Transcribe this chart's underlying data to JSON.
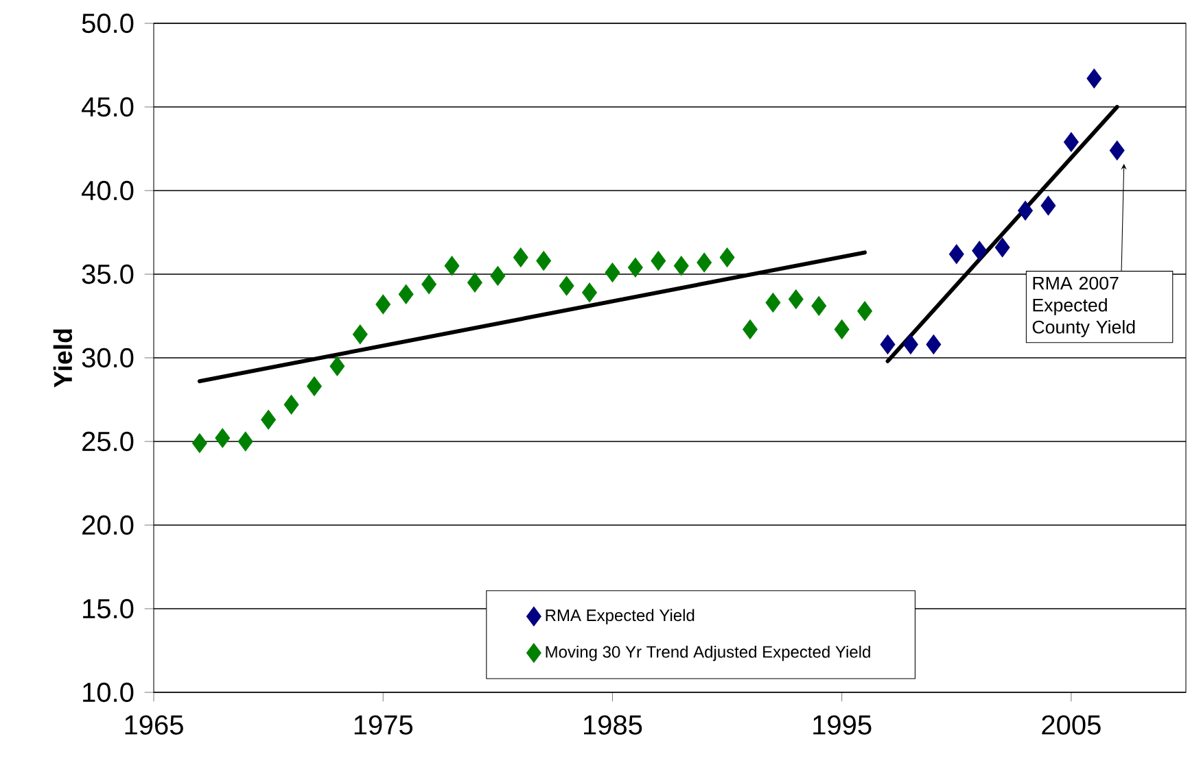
{
  "chart_data": {
    "type": "scatter",
    "ylabel": "Yield",
    "xlim": [
      1965,
      2010
    ],
    "xticks": [
      1965,
      1975,
      1985,
      1995,
      2005
    ],
    "ylim": [
      10,
      50
    ],
    "yticks": [
      {
        "value": 10,
        "label": "10.0"
      },
      {
        "value": 15,
        "label": "15.0"
      },
      {
        "value": 20,
        "label": "20.0"
      },
      {
        "value": 25,
        "label": "25.0"
      },
      {
        "value": 30,
        "label": "30.0"
      },
      {
        "value": 35,
        "label": "35.0"
      },
      {
        "value": 40,
        "label": "40.0"
      },
      {
        "value": 45,
        "label": "45.0"
      },
      {
        "value": 50,
        "label": "50.0"
      }
    ],
    "grid": "y",
    "legend": "bottom",
    "marker": "diamond",
    "series": [
      {
        "name": "RMA Expected Yield",
        "color": "#000080",
        "x": [
          1997,
          1998,
          1999,
          2000,
          2001,
          2002,
          2003,
          2004,
          2005,
          2006,
          2007
        ],
        "values": [
          30.8,
          30.8,
          30.8,
          36.2,
          36.4,
          36.6,
          38.8,
          39.1,
          42.9,
          46.7,
          42.4
        ]
      },
      {
        "name": "Moving 30 Yr Trend Adjusted Expected Yield",
        "color": "#008000",
        "x": [
          1967,
          1968,
          1969,
          1970,
          1971,
          1972,
          1973,
          1974,
          1975,
          1976,
          1977,
          1978,
          1979,
          1980,
          1981,
          1982,
          1983,
          1984,
          1985,
          1986,
          1987,
          1988,
          1989,
          1990,
          1991,
          1992,
          1993,
          1994,
          1995,
          1996
        ],
        "values": [
          24.9,
          25.2,
          25.0,
          26.3,
          27.2,
          28.3,
          29.5,
          31.4,
          33.2,
          33.8,
          34.4,
          35.5,
          34.5,
          34.9,
          36.0,
          35.8,
          34.3,
          33.9,
          35.1,
          35.4,
          35.8,
          35.5,
          35.7,
          36.0,
          31.7,
          33.3,
          33.5,
          33.1,
          31.7,
          32.8
        ]
      },
      {
        "type": "line",
        "marker": "none",
        "color": "#000000",
        "x": [
          1967,
          1996
        ],
        "values": [
          28.6,
          36.3
        ]
      },
      {
        "type": "line",
        "marker": "none",
        "color": "#000000",
        "x": [
          1997,
          2007
        ],
        "values": [
          29.8,
          45.0
        ]
      }
    ],
    "annotations": [
      "RMA 2007 Expected County Yield"
    ]
  }
}
